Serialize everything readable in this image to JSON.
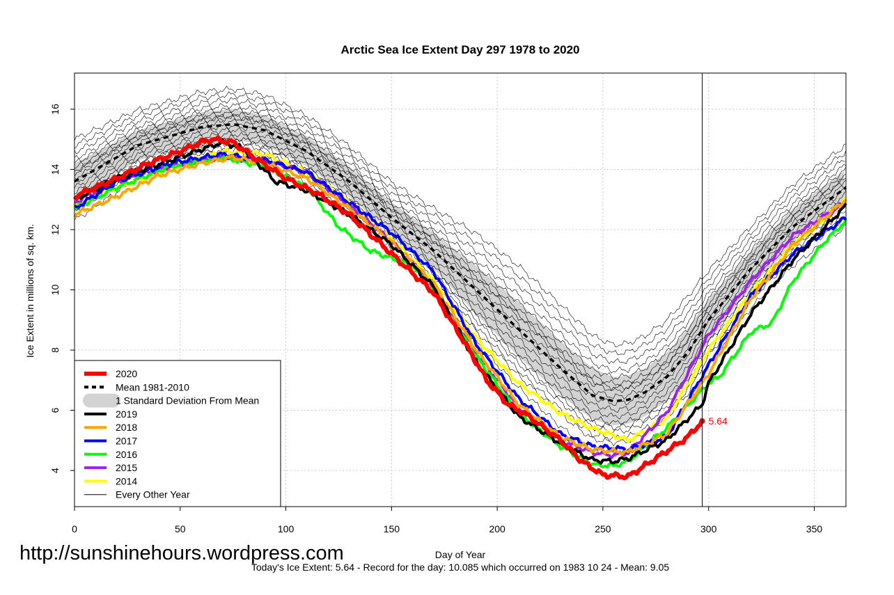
{
  "site_url": "http://sunshinehours.wordpress.com",
  "footer_text": "Today's Ice Extent: 5.64  - Record for the day: 10.085 which occurred on 1983 10 24  - Mean: 9.05",
  "chart_data": {
    "type": "line",
    "title": "Arctic Sea Ice Extent Day 297 1978 to 2020",
    "xlabel": "Day of Year",
    "ylabel": "Ice Extent in millions of sq. km.",
    "xlim": [
      0,
      365
    ],
    "ylim": [
      2.8,
      17.2
    ],
    "x_ticks": [
      "0",
      "50",
      "100",
      "150",
      "200",
      "250",
      "300",
      "350"
    ],
    "y_ticks": [
      "4",
      "6",
      "8",
      "10",
      "12",
      "14",
      "16"
    ],
    "grid": true,
    "legend_position": "bottom-left",
    "current_day": 297,
    "current_value": 5.64,
    "current_value_label": "5.64",
    "mean": {
      "x": [
        0,
        30,
        60,
        75,
        90,
        110,
        130,
        150,
        170,
        190,
        210,
        230,
        245,
        255,
        262,
        270,
        280,
        290,
        300,
        320,
        340,
        365
      ],
      "y": [
        13.6,
        14.8,
        15.4,
        15.5,
        15.3,
        14.6,
        13.6,
        12.4,
        11.3,
        10.0,
        8.7,
        7.4,
        6.5,
        6.3,
        6.35,
        6.6,
        7.1,
        7.9,
        9.0,
        10.7,
        12.1,
        13.4
      ]
    },
    "std_band": {
      "x": [
        0,
        30,
        60,
        75,
        90,
        110,
        130,
        150,
        170,
        190,
        210,
        230,
        245,
        255,
        262,
        270,
        280,
        290,
        300,
        320,
        340,
        365
      ],
      "upper": [
        14.2,
        15.3,
        15.9,
        16.0,
        15.8,
        15.1,
        14.1,
        12.9,
        11.9,
        10.8,
        9.6,
        8.3,
        7.4,
        7.1,
        7.15,
        7.4,
        7.9,
        8.7,
        9.7,
        11.3,
        12.7,
        14.0
      ],
      "lower": [
        13.0,
        14.3,
        14.9,
        15.0,
        14.8,
        14.1,
        13.1,
        11.9,
        10.7,
        9.2,
        7.8,
        6.5,
        5.7,
        5.5,
        5.55,
        5.8,
        6.3,
        7.1,
        8.3,
        10.1,
        11.5,
        12.8
      ]
    },
    "series": [
      {
        "name": "2014",
        "color": "#ffff00",
        "x": [
          0,
          20,
          45,
          70,
          90,
          110,
          130,
          150,
          170,
          190,
          210,
          230,
          245,
          262,
          280,
          300,
          320,
          340,
          365
        ],
        "y": [
          12.8,
          13.4,
          14.0,
          14.6,
          14.5,
          13.9,
          12.9,
          11.7,
          10.3,
          8.4,
          6.9,
          5.9,
          5.4,
          5.0,
          5.7,
          8.0,
          9.9,
          11.5,
          13.0
        ]
      },
      {
        "name": "2015",
        "color": "#a020f0",
        "x": [
          0,
          20,
          45,
          70,
          90,
          110,
          130,
          150,
          170,
          190,
          210,
          230,
          245,
          255,
          262,
          280,
          300,
          320,
          340,
          365
        ],
        "y": [
          12.9,
          13.6,
          14.1,
          14.4,
          14.3,
          13.9,
          12.8,
          11.6,
          10.1,
          7.9,
          6.1,
          5.0,
          4.6,
          4.5,
          4.6,
          5.9,
          8.5,
          10.3,
          11.8,
          12.9
        ]
      },
      {
        "name": "2016",
        "color": "#00ff00",
        "x": [
          0,
          20,
          45,
          70,
          90,
          110,
          125,
          140,
          160,
          170,
          190,
          210,
          230,
          245,
          255,
          262,
          280,
          300,
          305,
          320,
          330,
          340,
          355,
          365
        ],
        "y": [
          12.7,
          13.4,
          14.1,
          14.4,
          14.1,
          13.4,
          12.1,
          11.3,
          10.8,
          9.9,
          7.8,
          5.9,
          4.8,
          4.2,
          4.15,
          4.3,
          5.4,
          6.9,
          7.1,
          8.6,
          8.9,
          10.3,
          11.6,
          12.3
        ]
      },
      {
        "name": "2017",
        "color": "#0000ff",
        "x": [
          0,
          20,
          45,
          70,
          90,
          110,
          130,
          150,
          170,
          190,
          210,
          230,
          245,
          262,
          280,
          300,
          320,
          340,
          365
        ],
        "y": [
          12.7,
          13.6,
          14.2,
          14.5,
          14.3,
          13.9,
          12.9,
          11.9,
          10.6,
          8.2,
          6.4,
          5.2,
          4.8,
          4.7,
          5.1,
          7.5,
          9.8,
          11.2,
          12.4
        ]
      },
      {
        "name": "2018",
        "color": "#ffa500",
        "x": [
          0,
          20,
          40,
          60,
          75,
          90,
          110,
          130,
          150,
          170,
          190,
          210,
          230,
          245,
          262,
          280,
          300,
          320,
          340,
          365
        ],
        "y": [
          12.5,
          13.1,
          13.8,
          14.2,
          14.4,
          14.2,
          13.7,
          12.7,
          11.6,
          10.2,
          8.0,
          6.2,
          5.1,
          4.7,
          4.6,
          5.2,
          7.2,
          9.7,
          11.5,
          13.0
        ]
      },
      {
        "name": "2019",
        "color": "#000000",
        "x": [
          0,
          20,
          45,
          70,
          80,
          95,
          110,
          130,
          150,
          170,
          190,
          210,
          230,
          245,
          255,
          262,
          280,
          297,
          300,
          320,
          340,
          365
        ],
        "y": [
          13.0,
          13.7,
          14.3,
          14.9,
          14.7,
          13.6,
          13.3,
          12.5,
          11.5,
          10.1,
          7.6,
          5.8,
          4.9,
          4.35,
          4.3,
          4.4,
          5.0,
          6.2,
          6.9,
          9.2,
          11.0,
          12.8
        ]
      },
      {
        "name": "2020",
        "color": "#ff0000",
        "x": [
          0,
          20,
          35,
          50,
          60,
          65,
          75,
          85,
          100,
          115,
          130,
          150,
          170,
          185,
          195,
          205,
          215,
          230,
          240,
          250,
          262,
          275,
          290,
          297
        ],
        "y": [
          13.1,
          13.7,
          14.2,
          14.6,
          14.9,
          15.0,
          14.9,
          14.4,
          13.7,
          13.2,
          12.5,
          11.2,
          9.9,
          8.2,
          7.0,
          6.2,
          5.8,
          5.0,
          4.3,
          3.85,
          3.8,
          4.4,
          5.1,
          5.64
        ]
      }
    ],
    "legend": [
      {
        "label": "2020",
        "style": "thick",
        "color": "#ff0000"
      },
      {
        "label": "Mean 1981-2010",
        "style": "dashed",
        "color": "#000000"
      },
      {
        "label": "1 Standard Deviation From Mean",
        "style": "band",
        "color": "#d3d3d3"
      },
      {
        "label": "2019",
        "style": "line",
        "color": "#000000"
      },
      {
        "label": "2018",
        "style": "line",
        "color": "#ffa500"
      },
      {
        "label": "2017",
        "style": "line",
        "color": "#0000ff"
      },
      {
        "label": "2016",
        "style": "line",
        "color": "#00ff00"
      },
      {
        "label": "2015",
        "style": "line",
        "color": "#a020f0"
      },
      {
        "label": "2014",
        "style": "line",
        "color": "#ffff00"
      },
      {
        "label": "Every Other Year",
        "style": "thin",
        "color": "#000000"
      }
    ]
  }
}
